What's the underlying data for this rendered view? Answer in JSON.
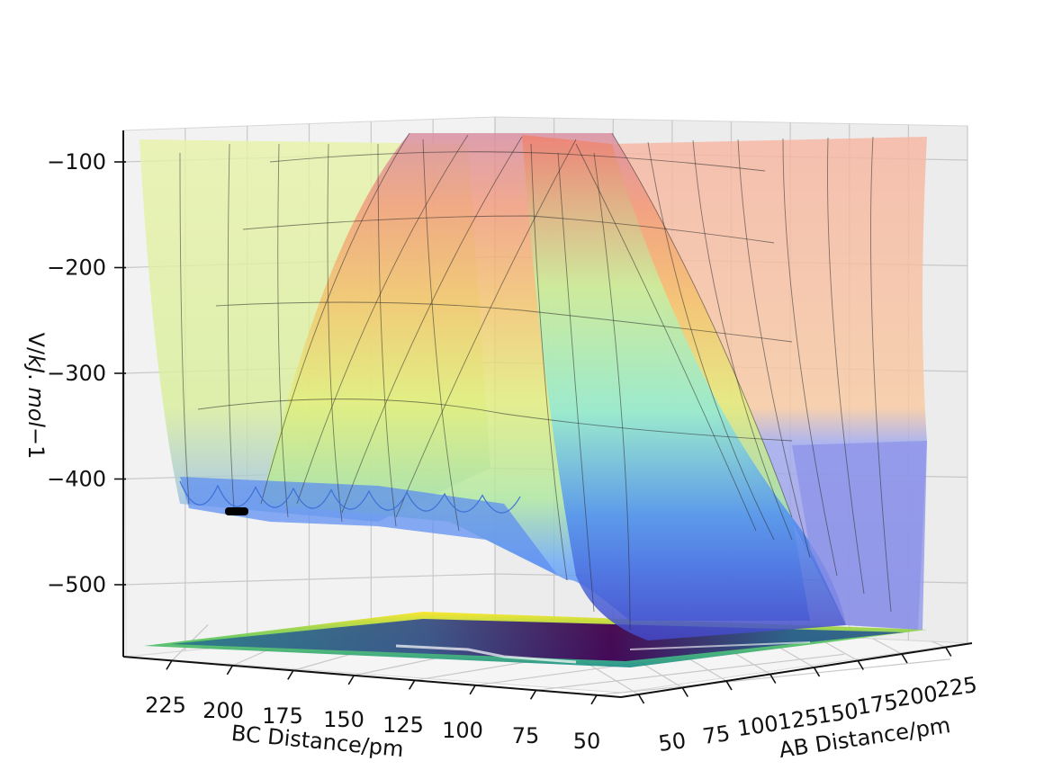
{
  "chart_data": {
    "type": "surface",
    "title": "",
    "z_axis": {
      "label_parts": [
        "V/",
        "kJ",
        ". ",
        "mol",
        "−1"
      ],
      "ticks": [
        -100,
        -200,
        -300,
        -400,
        -500
      ],
      "tick_labels": [
        "−100",
        "−200",
        "−300",
        "−400",
        "−500"
      ]
    },
    "bc_axis": {
      "label": "BC Distance/pm",
      "ticks": [
        225,
        200,
        175,
        150,
        125,
        100,
        75,
        50
      ],
      "tick_labels": [
        "225",
        "200",
        "175",
        "150",
        "125",
        "100",
        "75",
        "50"
      ]
    },
    "ab_axis": {
      "label": "AB Distance/pm",
      "ticks": [
        50,
        75,
        100,
        125,
        150,
        175,
        200,
        225
      ],
      "tick_labels": [
        "50",
        "75",
        "100",
        "125",
        "150",
        "175",
        "200",
        "225"
      ]
    },
    "grid": true,
    "colormap_surface": "jet",
    "colormap_contour_floor": "viridis",
    "trajectory_color": "#000000"
  }
}
